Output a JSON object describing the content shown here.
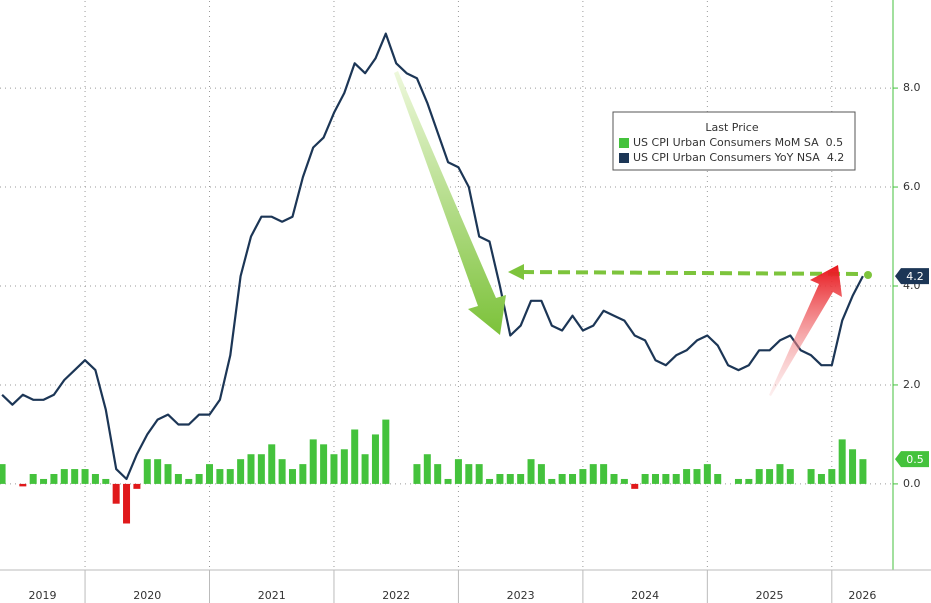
{
  "chart_data": {
    "type": "combo",
    "legend_title": "Last Price",
    "legend_corner": "upper-right",
    "ylim": [
      -1.74,
      9.76
    ],
    "yticks": [
      {
        "value": 0,
        "label": "0.0"
      },
      {
        "value": 2,
        "label": "2.0"
      },
      {
        "value": 4,
        "label": "4.0"
      },
      {
        "value": 6,
        "label": "6.0"
      },
      {
        "value": 8,
        "label": "8.0"
      }
    ],
    "xlim": [
      -0.2,
      85.9
    ],
    "xticks": [
      {
        "value": -4,
        "label": "2019"
      },
      {
        "value": 8,
        "label": "2020"
      },
      {
        "value": 20,
        "label": "2021"
      },
      {
        "value": 32,
        "label": "2022"
      },
      {
        "value": 44,
        "label": "2023"
      },
      {
        "value": 56,
        "label": "2024"
      },
      {
        "value": 68,
        "label": "2025"
      },
      {
        "value": 80,
        "label": "2026"
      }
    ],
    "grid": true,
    "series": [
      {
        "name": "US CPI Urban Consumers MoM SA",
        "type": "bar",
        "color": "#44c23c",
        "negative_color": "#e0191b",
        "values": [
          0.4,
          0.0,
          -0.05,
          0.2,
          0.1,
          0.2,
          0.3,
          0.3,
          0.3,
          0.2,
          0.1,
          -0.4,
          -0.8,
          -0.1,
          0.5,
          0.5,
          0.4,
          0.2,
          0.1,
          0.2,
          0.4,
          0.3,
          0.3,
          0.5,
          0.6,
          0.6,
          0.8,
          0.5,
          0.3,
          0.4,
          0.9,
          0.8,
          0.6,
          0.7,
          1.1,
          0.6,
          1.0,
          1.3,
          0.0,
          0.0,
          0.4,
          0.6,
          0.4,
          0.1,
          0.5,
          0.4,
          0.4,
          0.1,
          0.2,
          0.2,
          0.2,
          0.5,
          0.4,
          0.1,
          0.2,
          0.2,
          0.3,
          0.4,
          0.4,
          0.2,
          0.1,
          -0.1,
          0.2,
          0.2,
          0.2,
          0.2,
          0.3,
          0.3,
          0.4,
          0.2,
          0.0,
          0.1,
          0.1,
          0.3,
          0.3,
          0.4,
          0.3,
          0.0,
          0.3,
          0.2,
          0.3,
          0.9,
          0.7,
          0.5
        ]
      },
      {
        "name": "US CPI Urban Consumers YoY NSA",
        "type": "line",
        "color": "#1c3656",
        "values": [
          1.8,
          1.6,
          1.8,
          1.7,
          1.7,
          1.8,
          2.1,
          2.3,
          2.5,
          2.3,
          1.5,
          0.3,
          0.1,
          0.6,
          1.0,
          1.3,
          1.4,
          1.2,
          1.2,
          1.4,
          1.4,
          1.7,
          2.6,
          4.2,
          5.0,
          5.4,
          5.4,
          5.3,
          5.4,
          6.2,
          6.8,
          7.0,
          7.5,
          7.9,
          8.5,
          8.3,
          8.6,
          9.1,
          8.5,
          8.3,
          8.2,
          7.7,
          7.1,
          6.5,
          6.4,
          6.0,
          5.0,
          4.9,
          4.0,
          3.0,
          3.2,
          3.7,
          3.7,
          3.2,
          3.1,
          3.4,
          3.1,
          3.2,
          3.5,
          3.4,
          3.3,
          3.0,
          2.9,
          2.5,
          2.4,
          2.6,
          2.7,
          2.9,
          3.0,
          2.8,
          2.4,
          2.3,
          2.4,
          2.7,
          2.7,
          2.9,
          3.0,
          2.7,
          2.6,
          2.4,
          2.4,
          3.3,
          3.8,
          4.2
        ]
      }
    ]
  }
}
